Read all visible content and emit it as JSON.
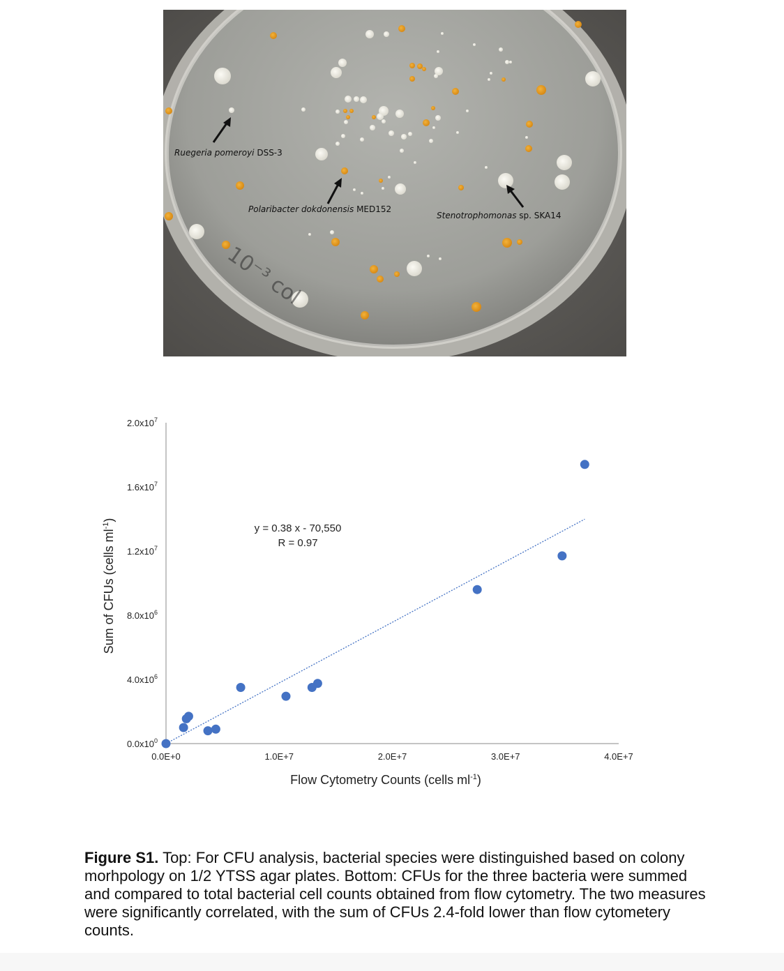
{
  "figure": {
    "photo_labels": [
      {
        "species": "Ruegeria pomeroyi",
        "strain": " DSS-3"
      },
      {
        "species": "Polaribacter dokdonensis",
        "strain": " MED152"
      },
      {
        "species": "Stenotrophomonas",
        "strain": " sp. SKA14"
      }
    ],
    "plate_marking": "10⁻³ col"
  },
  "chart_data": {
    "type": "scatter",
    "xlabel_main": "Flow Cytometry Counts (cells ml",
    "xlabel_sup": "-1",
    "xlabel_close": ")",
    "ylabel_main": "Sum of CFUs (cells ml",
    "ylabel_sup": "-1",
    "ylabel_close": ")",
    "xlim": [
      0,
      40000000
    ],
    "ylim": [
      0,
      20000000
    ],
    "x_ticks": [
      {
        "value": 0,
        "label": "0.0E+0"
      },
      {
        "value": 10000000,
        "label": "1.0E+7"
      },
      {
        "value": 20000000,
        "label": "2.0E+7"
      },
      {
        "value": 30000000,
        "label": "3.0E+7"
      },
      {
        "value": 40000000,
        "label": "4.0E+7"
      }
    ],
    "y_ticks": [
      {
        "value": 0,
        "mant": "0.0x10",
        "exp": "0"
      },
      {
        "value": 4000000,
        "mant": "4.0x10",
        "exp": "6"
      },
      {
        "value": 8000000,
        "mant": "8.0x10",
        "exp": "6"
      },
      {
        "value": 12000000,
        "mant": "1.2x10",
        "exp": "7"
      },
      {
        "value": 16000000,
        "mant": "1.6x10",
        "exp": "7"
      },
      {
        "value": 20000000,
        "mant": "2.0x10",
        "exp": "7"
      }
    ],
    "points": [
      {
        "x": 0,
        "y": 0
      },
      {
        "x": 1550000,
        "y": 1000000
      },
      {
        "x": 1800000,
        "y": 1550000
      },
      {
        "x": 2000000,
        "y": 1700000
      },
      {
        "x": 3700000,
        "y": 800000
      },
      {
        "x": 4400000,
        "y": 900000
      },
      {
        "x": 6600000,
        "y": 3500000
      },
      {
        "x": 10600000,
        "y": 2950000
      },
      {
        "x": 12900000,
        "y": 3500000
      },
      {
        "x": 13400000,
        "y": 3750000
      },
      {
        "x": 27500000,
        "y": 9600000
      },
      {
        "x": 35000000,
        "y": 11700000
      },
      {
        "x": 37000000,
        "y": 17400000
      }
    ],
    "trendline": {
      "slope": 0.38,
      "intercept": -70550,
      "x_range": [
        0,
        37000000
      ]
    },
    "equation": "y = 0.38 x - 70,550",
    "r_value": "R = 0.97",
    "colors": {
      "points": "#4472c4",
      "trendline": "#4472c4",
      "axis": "#888888"
    },
    "grid": false,
    "legend": "none"
  },
  "caption": {
    "label": "Figure S1.",
    "text": " Top: For CFU analysis, bacterial species were distinguished based on colony morhpology on 1/2 YTSS agar plates. Bottom: CFUs for the three bacteria were summed and compared to total bacterial cell counts obtained from flow cytometry. The two measures were significantly correlated, with the sum of CFUs 2.4-fold lower than flow cytometery counts."
  }
}
